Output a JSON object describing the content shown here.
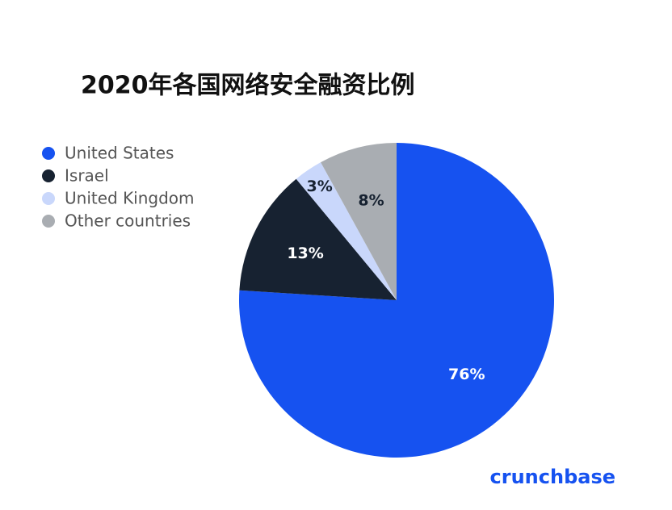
{
  "chart_data": {
    "type": "pie",
    "title": "2020年各国网络安全融资比例",
    "categories": [
      "United States",
      "Israel",
      "United Kingdom",
      "Other countries"
    ],
    "values": [
      76,
      13,
      3,
      8
    ],
    "value_labels": [
      "76%",
      "13%",
      "3%",
      "8%"
    ],
    "colors": [
      "#1652f0",
      "#172231",
      "#c9d7fb",
      "#a9adb2"
    ],
    "legend": "top-left",
    "brand": "crunchbase"
  }
}
